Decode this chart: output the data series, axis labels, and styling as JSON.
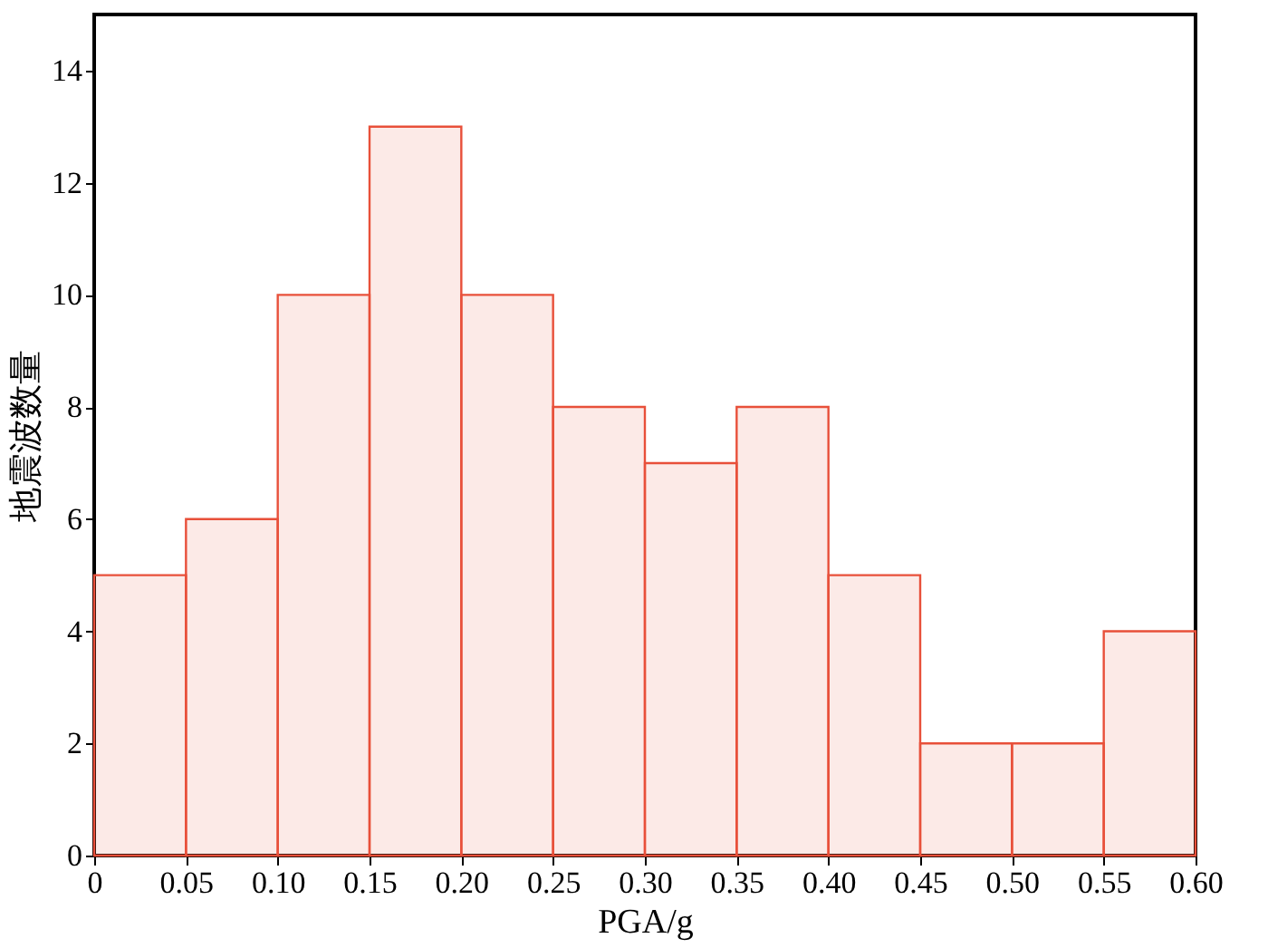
{
  "chart_data": {
    "type": "histogram",
    "xlabel": "PGA/g",
    "ylabel": "地震波数量",
    "bins": [
      0,
      0.05,
      0.1,
      0.15,
      0.2,
      0.25,
      0.3,
      0.35,
      0.4,
      0.45,
      0.5,
      0.55,
      0.6
    ],
    "values": [
      5,
      6,
      10,
      13,
      10,
      8,
      7,
      8,
      5,
      2,
      2,
      4
    ],
    "color": "#e8503a",
    "xlim": [
      0,
      0.6
    ],
    "xticks": [
      0,
      {
        "value": 0.05,
        "label": "0.05"
      },
      {
        "value": 0.1,
        "label": "0.10"
      },
      {
        "value": 0.15,
        "label": "0.15"
      },
      {
        "value": 0.2,
        "label": "0.20"
      },
      {
        "value": 0.25,
        "label": "0.25"
      },
      {
        "value": 0.3,
        "label": "0.30"
      },
      {
        "value": 0.35,
        "label": "0.35"
      },
      {
        "value": 0.4,
        "label": "0.40"
      },
      {
        "value": 0.45,
        "label": "0.45"
      },
      {
        "value": 0.5,
        "label": "0.50"
      },
      {
        "value": 0.55,
        "label": "0.55"
      },
      {
        "value": 0.6,
        "label": "0.60"
      }
    ],
    "ylim": [
      0,
      15
    ],
    "yticks": [
      0,
      2,
      4,
      6,
      8,
      10,
      12,
      14
    ],
    "grid": false
  }
}
